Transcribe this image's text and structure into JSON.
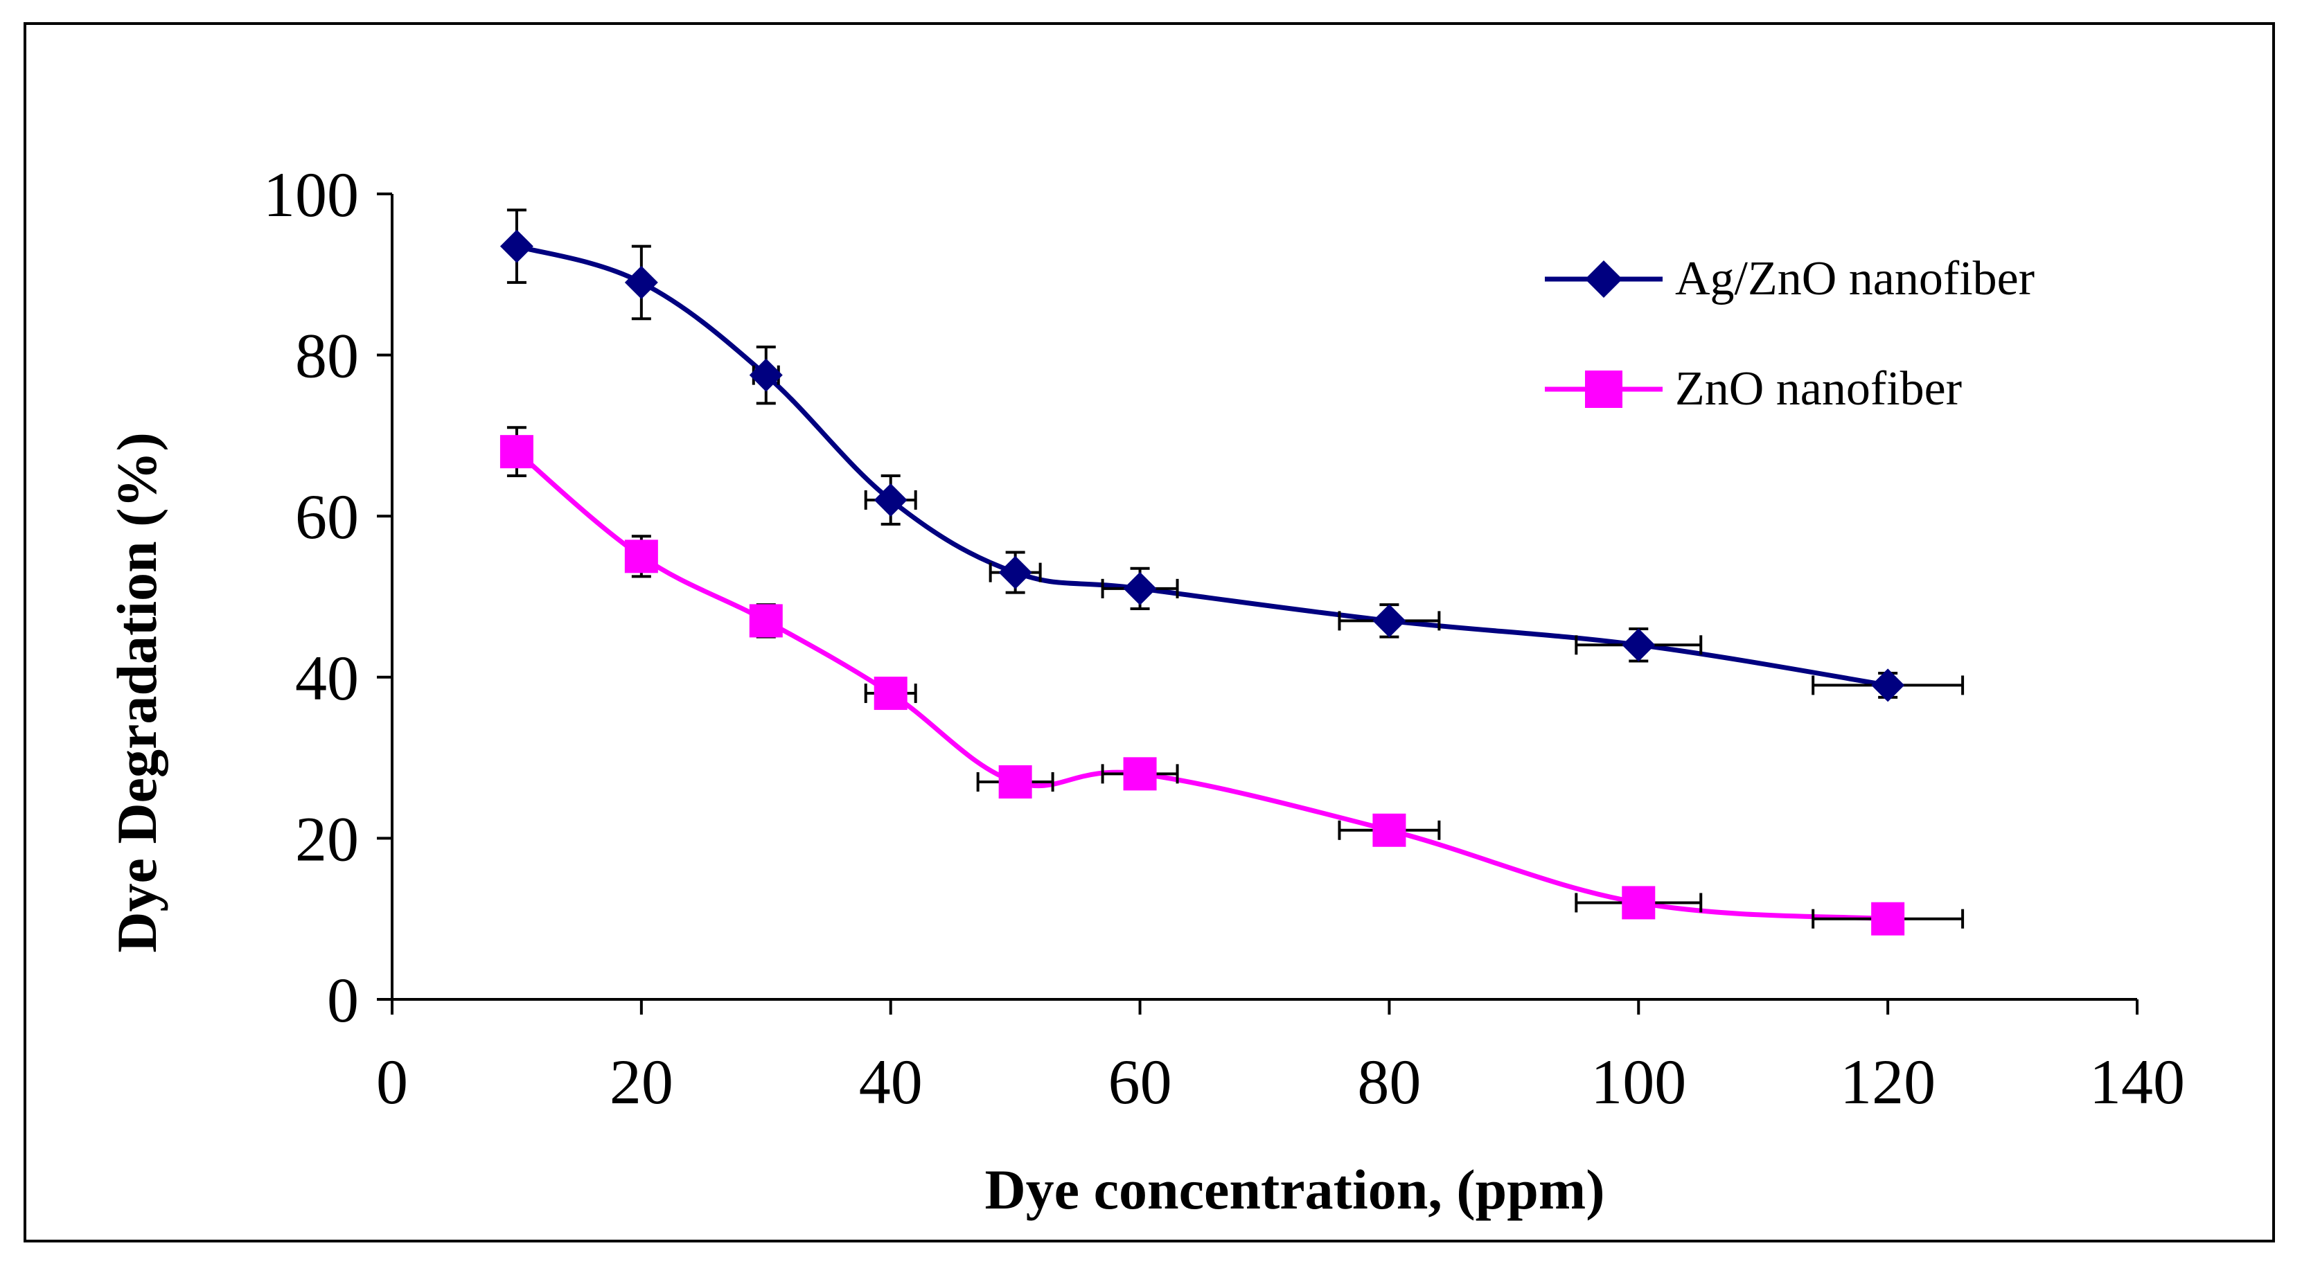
{
  "chart_data": {
    "type": "line",
    "title": "",
    "xlabel": "Dye concentration, (ppm)",
    "ylabel": "Dye Degradation (%)",
    "xlim": [
      0,
      140
    ],
    "ylim": [
      0,
      100
    ],
    "xticks": [
      0,
      20,
      40,
      60,
      80,
      100,
      120,
      140
    ],
    "yticks": [
      0,
      20,
      40,
      60,
      80,
      100
    ],
    "grid": false,
    "legend_position": "top-right",
    "x": [
      10,
      20,
      30,
      40,
      50,
      60,
      80,
      100,
      120
    ],
    "series": [
      {
        "name": "Ag/ZnO nanofiber",
        "color": "#000080",
        "marker": "diamond",
        "values": [
          93.5,
          89,
          77.5,
          62,
          53,
          51,
          47,
          44,
          39
        ],
        "yerr": [
          4.5,
          4.5,
          3.5,
          3,
          2.5,
          2.5,
          2,
          2,
          1.5
        ],
        "xerr": [
          0,
          0,
          1,
          2,
          2,
          3,
          4,
          5,
          6
        ]
      },
      {
        "name": "ZnO nanofiber",
        "color": "#FF00FF",
        "marker": "square",
        "values": [
          68,
          55,
          47,
          38,
          27,
          28,
          21,
          12,
          10
        ],
        "yerr": [
          3,
          2.5,
          2,
          1.5,
          1,
          1,
          1,
          1,
          1
        ],
        "xerr": [
          0,
          0,
          1,
          2,
          3,
          3,
          4,
          5,
          6
        ]
      }
    ]
  }
}
